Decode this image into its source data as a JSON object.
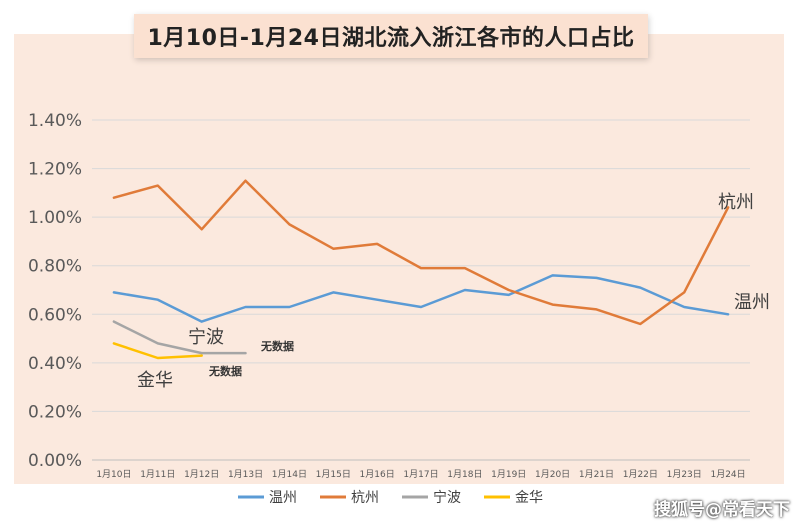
{
  "chart_data": {
    "type": "line",
    "title": "1月10日-1月24日湖北流入浙江各市的人口占比",
    "categories": [
      "1月10日",
      "1月11日",
      "1月12日",
      "1月13日",
      "1月14日",
      "1月15日",
      "1月16日",
      "1月17日",
      "1月18日",
      "1月19日",
      "1月20日",
      "1月21日",
      "1月22日",
      "1月23日",
      "1月24日"
    ],
    "y_ticks": [
      "0.00%",
      "0.20%",
      "0.40%",
      "0.60%",
      "0.80%",
      "1.00%",
      "1.20%",
      "1.40%"
    ],
    "ylim": [
      0,
      1.4
    ],
    "y_unit": "%",
    "grid": true,
    "legend_position": "bottom",
    "series": [
      {
        "name": "温州",
        "color": "#5b9bd5",
        "values": [
          0.69,
          0.66,
          0.57,
          0.63,
          0.63,
          0.69,
          0.66,
          0.63,
          0.7,
          0.68,
          0.76,
          0.75,
          0.71,
          0.63,
          0.6
        ],
        "end_label": "温州"
      },
      {
        "name": "杭州",
        "color": "#e07b39",
        "values": [
          1.08,
          1.13,
          0.95,
          1.15,
          0.97,
          0.87,
          0.89,
          0.79,
          0.79,
          0.7,
          0.64,
          0.62,
          0.56,
          0.69,
          1.04
        ],
        "end_label": "杭州"
      },
      {
        "name": "宁波",
        "color": "#a5a5a5",
        "values": [
          0.57,
          0.48,
          0.44,
          0.44,
          null,
          null,
          null,
          null,
          null,
          null,
          null,
          null,
          null,
          null,
          null
        ],
        "end_label": "宁波"
      },
      {
        "name": "金华",
        "color": "#ffc000",
        "values": [
          0.48,
          0.42,
          0.43,
          null,
          null,
          null,
          null,
          null,
          null,
          null,
          null,
          null,
          null,
          null,
          null
        ],
        "end_label": "金华"
      }
    ],
    "annotations": [
      {
        "text": "无数据",
        "series": "宁波"
      },
      {
        "text": "无数据",
        "series": "金华"
      }
    ]
  },
  "watermark": "搜狐号@常看天下"
}
